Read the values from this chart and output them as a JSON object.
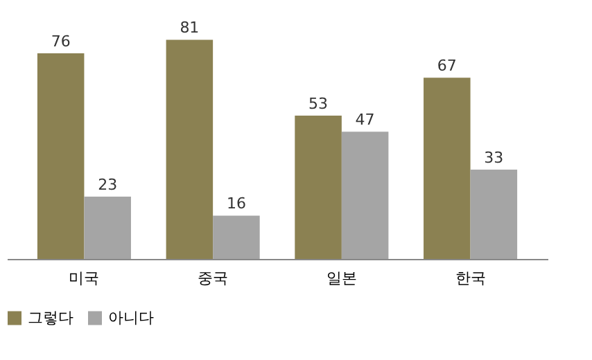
{
  "chart_data": {
    "type": "bar",
    "categories": [
      "미국",
      "중국",
      "일본",
      "한국"
    ],
    "series": [
      {
        "name": "그렇다",
        "color": "#8b8152",
        "values": [
          76,
          81,
          53,
          67
        ]
      },
      {
        "name": "아니다",
        "color": "#a5a5a5",
        "values": [
          23,
          16,
          47,
          33
        ]
      }
    ],
    "tick_labels": "x",
    "data_labels": true,
    "legend": "bottom",
    "grid": false
  }
}
